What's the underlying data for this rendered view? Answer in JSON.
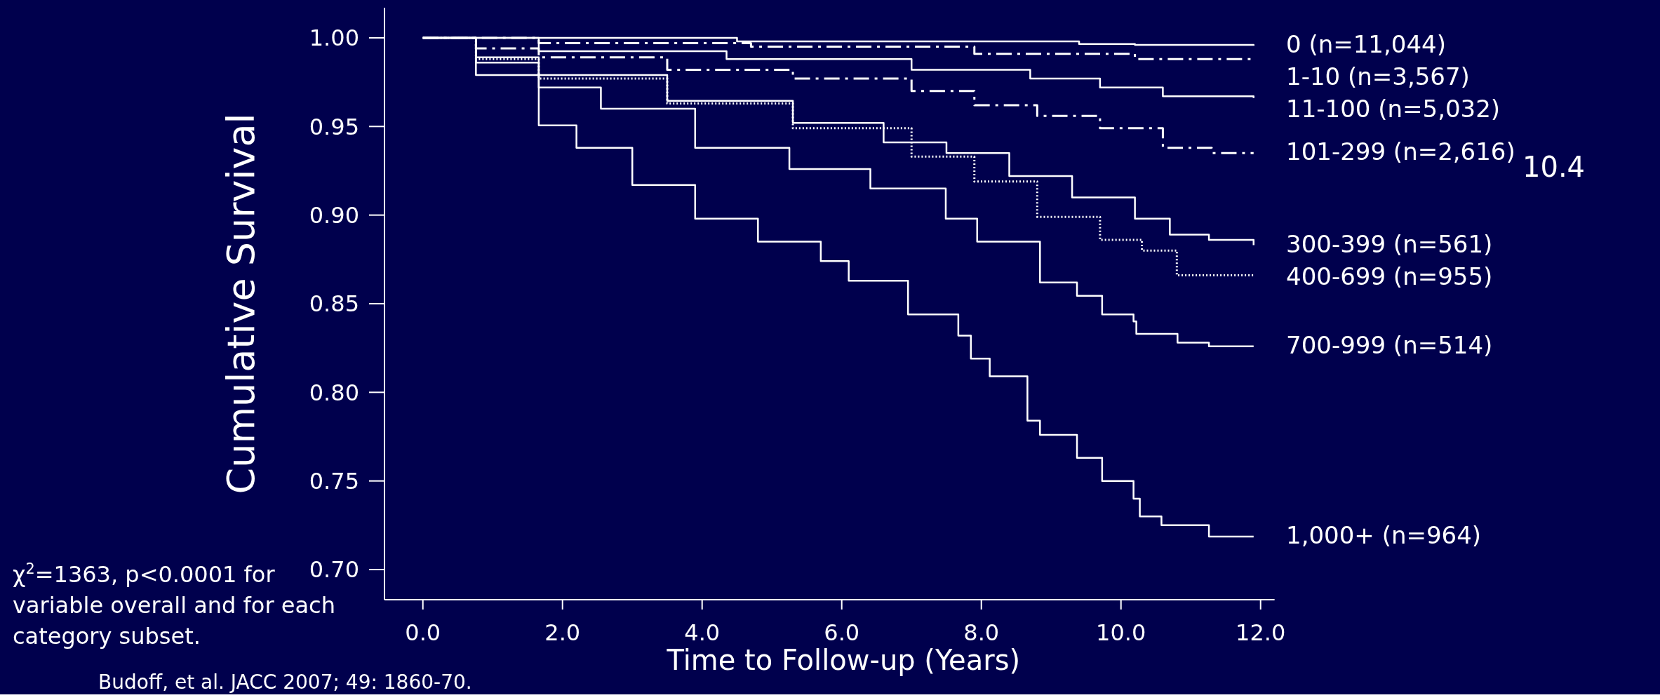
{
  "chart_data": {
    "type": "step",
    "xlabel": "Time to Follow-up (Years)",
    "ylabel": "Cumulative Survival",
    "xlim": [
      -0.55,
      12.2
    ],
    "ylim": [
      0.683,
      1.017
    ],
    "xticks": [
      {
        "value": 0,
        "label": "0.0"
      },
      {
        "value": 2,
        "label": "2.0"
      },
      {
        "value": 4,
        "label": "4.0"
      },
      {
        "value": 6,
        "label": "6.0"
      },
      {
        "value": 8,
        "label": "8.0"
      },
      {
        "value": 10,
        "label": "10.0"
      },
      {
        "value": 12,
        "label": "12.0"
      }
    ],
    "yticks": [
      {
        "value": 0.7,
        "label": "0.70"
      },
      {
        "value": 0.75,
        "label": "0.75"
      },
      {
        "value": 0.8,
        "label": "0.80"
      },
      {
        "value": 0.85,
        "label": "0.85"
      },
      {
        "value": 0.9,
        "label": "0.90"
      },
      {
        "value": 0.95,
        "label": "0.95"
      },
      {
        "value": 1.0,
        "label": "1.00"
      }
    ],
    "marker": "none",
    "series": [
      {
        "name": "0 (n=11,044)",
        "color": "#ffffff",
        "line_style": "solid",
        "x": [
          0,
          4.5,
          9.4,
          10.2,
          11.9
        ],
        "values": [
          1.0,
          0.998,
          0.9965,
          0.996,
          0.9955
        ]
      },
      {
        "name": "1-10 (n=3,567)",
        "color": "#ffffff",
        "line_style": "dashed",
        "x": [
          0,
          1.66,
          4.7,
          7.9,
          10.2,
          11.9
        ],
        "values": [
          1.0,
          0.997,
          0.995,
          0.991,
          0.988,
          0.987
        ]
      },
      {
        "name": "11-100 (n=5,032)",
        "color": "#ffffff",
        "line_style": "solid",
        "x": [
          0,
          1.66,
          4.35,
          7.0,
          8.7,
          9.7,
          10.6,
          11.9
        ],
        "values": [
          1.0,
          0.9925,
          0.988,
          0.982,
          0.977,
          0.972,
          0.967,
          0.966
        ]
      },
      {
        "name": "101-299 (n=2,616)",
        "color": "#ffffff",
        "line_style": "dashed",
        "x": [
          0,
          0.76,
          1.66,
          3.5,
          5.3,
          7.0,
          7.9,
          8.8,
          9.7,
          10.6,
          11.3,
          11.9
        ],
        "values": [
          1.0,
          0.994,
          0.989,
          0.982,
          0.977,
          0.97,
          0.962,
          0.956,
          0.949,
          0.938,
          0.935,
          0.935
        ]
      },
      {
        "name": "300-399 (n=561)",
        "color": "#ffffff",
        "line_style": "solid",
        "x": [
          0,
          0.76,
          1.66,
          3.5,
          5.3,
          6.6,
          7.5,
          8.4,
          9.3,
          10.2,
          10.7,
          11.26,
          11.9
        ],
        "values": [
          1.0,
          0.989,
          0.979,
          0.9645,
          0.952,
          0.941,
          0.935,
          0.922,
          0.91,
          0.898,
          0.889,
          0.886,
          0.883
        ]
      },
      {
        "name": "400-699 (n=955)",
        "color": "#ffffff",
        "line_style": "dotted",
        "x": [
          0,
          0.76,
          1.66,
          3.5,
          5.3,
          7.0,
          7.9,
          8.8,
          9.7,
          10.3,
          10.8,
          11.9
        ],
        "values": [
          1.0,
          0.988,
          0.977,
          0.963,
          0.949,
          0.933,
          0.919,
          0.899,
          0.886,
          0.88,
          0.866,
          0.865
        ]
      },
      {
        "name": "700-999 (n=514)",
        "color": "#ffffff",
        "line_style": "solid",
        "x": [
          0,
          0.76,
          1.66,
          2.55,
          3.9,
          5.25,
          6.41,
          7.49,
          7.94,
          8.84,
          9.37,
          9.73,
          10.18,
          10.22,
          10.81,
          11.26,
          11.9
        ],
        "values": [
          1.0,
          0.986,
          0.972,
          0.96,
          0.938,
          0.926,
          0.915,
          0.898,
          0.885,
          0.862,
          0.8545,
          0.844,
          0.84,
          0.833,
          0.828,
          0.826,
          0.826
        ]
      },
      {
        "name": "1,000+ (n=964)",
        "color": "#ffffff",
        "line_style": "solid",
        "x": [
          0,
          0.76,
          1.66,
          2.2,
          3.0,
          3.9,
          4.8,
          5.7,
          6.1,
          6.95,
          7.67,
          7.85,
          8.12,
          8.66,
          8.84,
          9.24,
          9.37,
          9.73,
          10.18,
          10.27,
          10.58,
          11.26,
          11.9
        ],
        "values": [
          1.0,
          0.979,
          0.9506,
          0.938,
          0.917,
          0.898,
          0.885,
          0.874,
          0.863,
          0.844,
          0.832,
          0.819,
          0.809,
          0.784,
          0.776,
          0.776,
          0.763,
          0.75,
          0.74,
          0.73,
          0.725,
          0.7186,
          0.7186
        ]
      }
    ],
    "annotations": [
      "χ$^{2}$=1363, p<0.0001 for variable overall and for each category subset.",
      "Budoff, et al. JACC 2007; 49: 1860-70.",
      "10.4"
    ]
  }
}
